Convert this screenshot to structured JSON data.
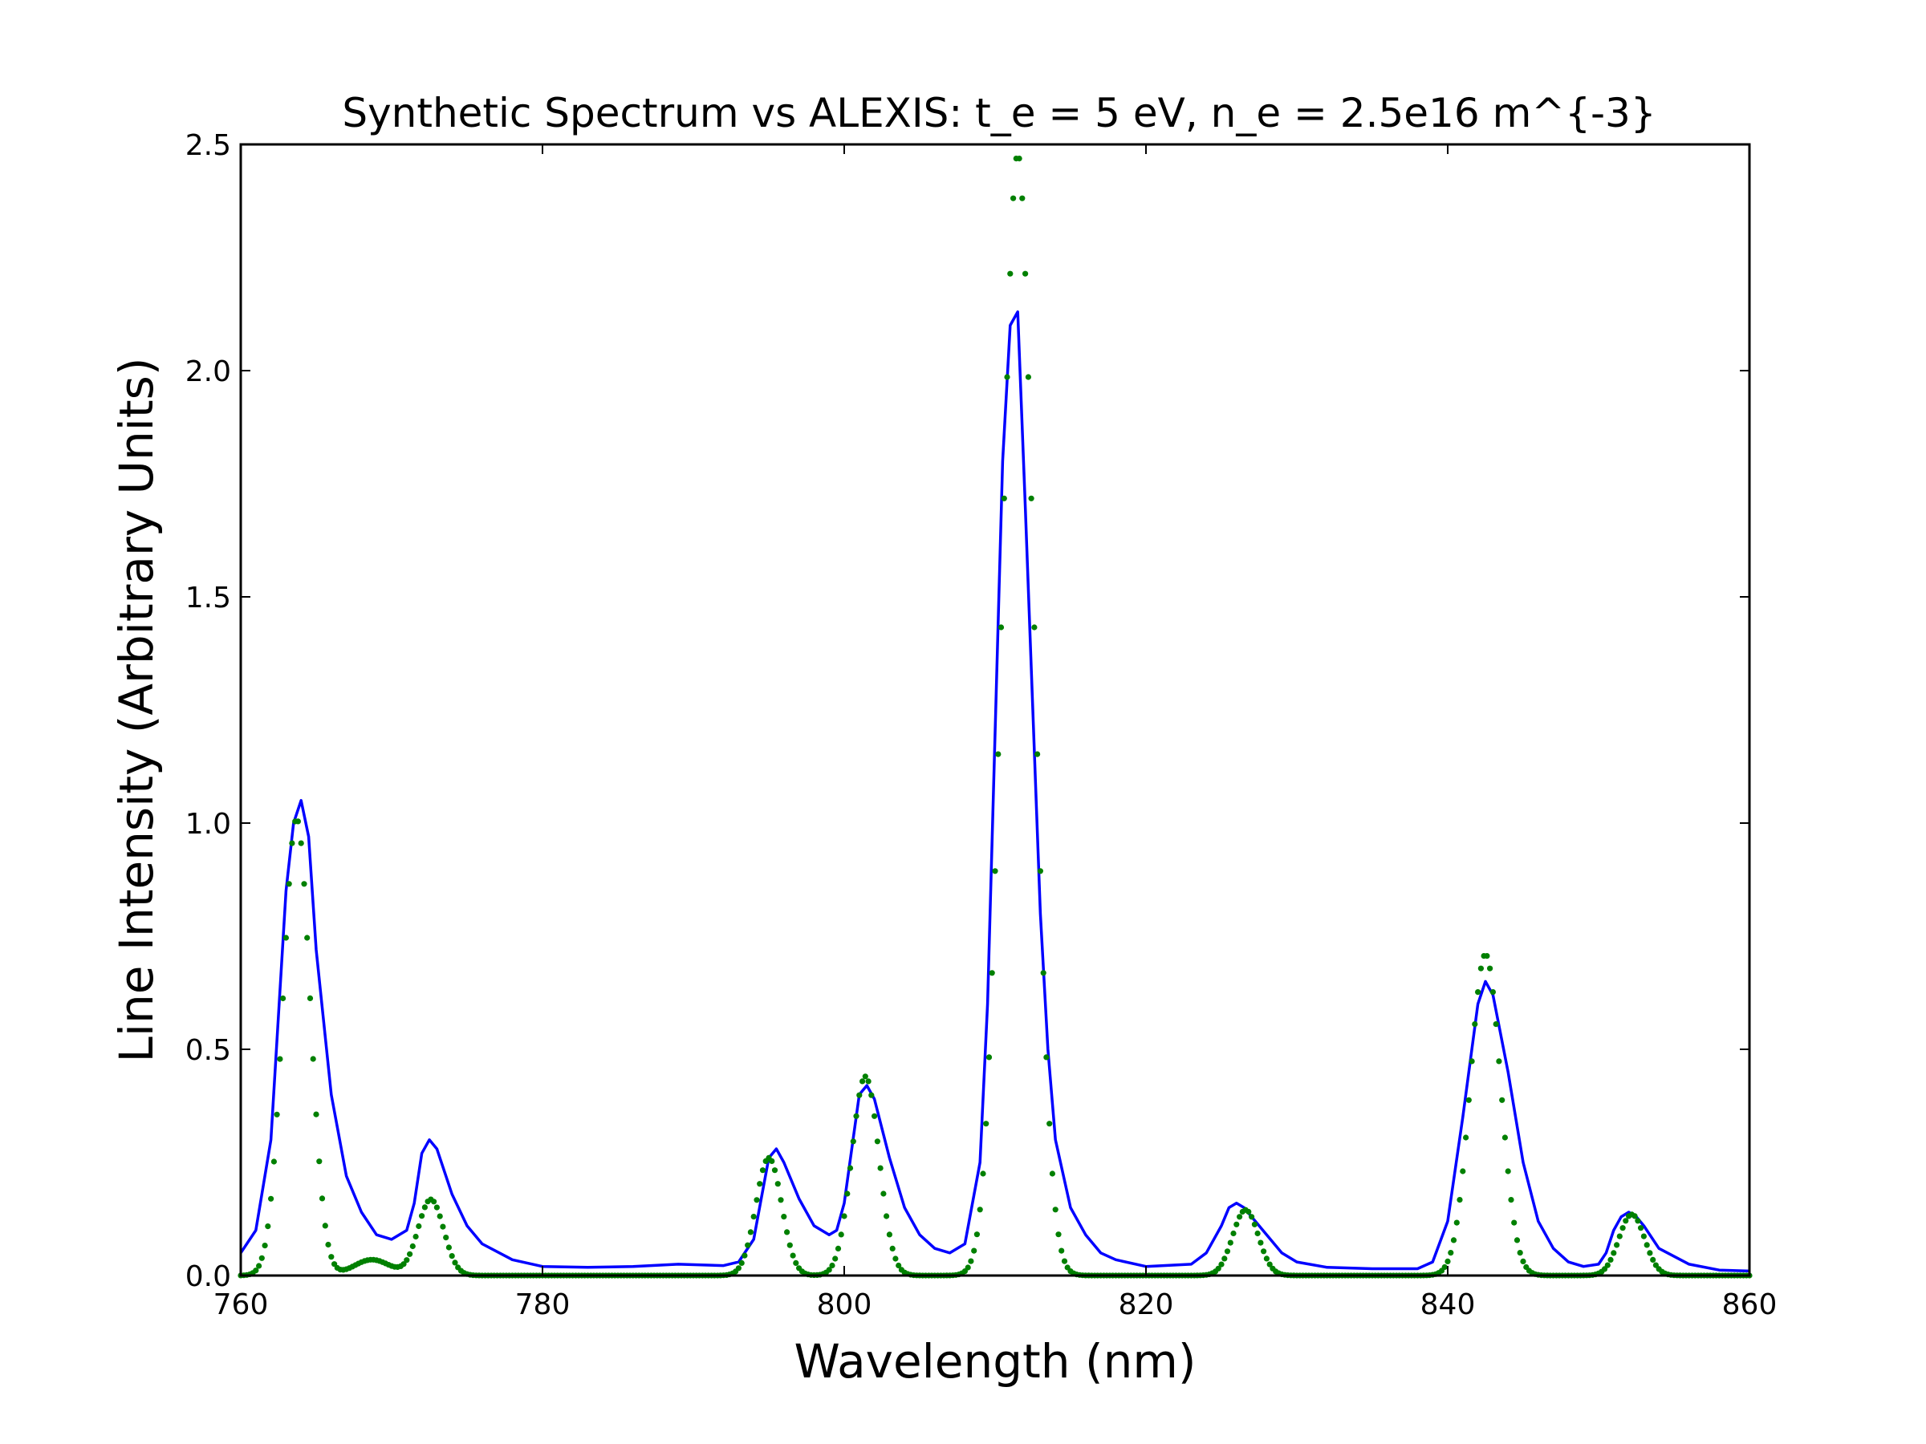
{
  "chart_data": {
    "type": "line",
    "title": "Synthetic Spectrum vs ALEXIS: t_e = 5 eV, n_e = 2.5e16 m^{-3}",
    "xlabel": "Wavelength (nm)",
    "ylabel": "Line Intensity (Arbitrary Units)",
    "xlim": [
      760,
      860
    ],
    "ylim": [
      0,
      2.5
    ],
    "xticks": [
      "760",
      "780",
      "800",
      "820",
      "840",
      "860"
    ],
    "yticks": [
      "0.0",
      "0.5",
      "1.0",
      "1.5",
      "2.0",
      "2.5"
    ],
    "grid": false,
    "legend": "none",
    "series": [
      {
        "style": "line",
        "color": "#0000ff",
        "x": [
          760,
          761,
          762,
          763,
          763.5,
          764,
          764.5,
          765,
          766,
          767,
          768,
          769,
          770,
          771,
          771.5,
          772,
          772.5,
          773,
          774,
          775,
          776,
          778,
          780,
          783,
          786,
          789,
          792,
          793,
          794,
          794.5,
          795,
          795.5,
          796,
          797,
          798,
          799,
          799.5,
          800,
          800.5,
          801,
          801.5,
          802,
          803,
          804,
          805,
          806,
          807,
          808,
          809,
          809.5,
          810,
          810.5,
          811,
          811.5,
          812,
          812.5,
          813,
          813.5,
          814,
          815,
          816,
          817,
          818,
          820,
          823,
          824,
          825,
          825.5,
          826,
          826.5,
          827,
          828,
          829,
          830,
          832,
          835,
          838,
          839,
          840,
          841,
          842,
          842.5,
          843,
          844,
          845,
          846,
          847,
          848,
          849,
          850,
          850.5,
          851,
          851.5,
          852,
          852.5,
          853,
          854,
          856,
          858,
          860
        ],
        "y": [
          0.05,
          0.1,
          0.3,
          0.85,
          1.0,
          1.05,
          0.97,
          0.72,
          0.4,
          0.22,
          0.14,
          0.09,
          0.08,
          0.1,
          0.16,
          0.27,
          0.3,
          0.28,
          0.18,
          0.11,
          0.07,
          0.035,
          0.02,
          0.018,
          0.02,
          0.025,
          0.022,
          0.03,
          0.08,
          0.17,
          0.26,
          0.28,
          0.25,
          0.17,
          0.11,
          0.09,
          0.1,
          0.16,
          0.28,
          0.4,
          0.42,
          0.39,
          0.26,
          0.15,
          0.09,
          0.06,
          0.05,
          0.07,
          0.25,
          0.6,
          1.2,
          1.8,
          2.1,
          2.13,
          1.7,
          1.25,
          0.8,
          0.5,
          0.3,
          0.15,
          0.09,
          0.05,
          0.035,
          0.02,
          0.025,
          0.05,
          0.11,
          0.15,
          0.16,
          0.15,
          0.13,
          0.09,
          0.05,
          0.03,
          0.018,
          0.015,
          0.015,
          0.03,
          0.12,
          0.35,
          0.6,
          0.65,
          0.62,
          0.45,
          0.25,
          0.12,
          0.06,
          0.03,
          0.02,
          0.025,
          0.05,
          0.1,
          0.13,
          0.14,
          0.13,
          0.11,
          0.06,
          0.025,
          0.012,
          0.01
        ]
      },
      {
        "style": "dots",
        "color": "#008000",
        "peaks": [
          {
            "center": 763.7,
            "amplitude": 1.01,
            "sigma": 0.9
          },
          {
            "center": 772.6,
            "amplitude": 0.168,
            "sigma": 0.85
          },
          {
            "center": 768.7,
            "amplitude": 0.035,
            "sigma": 1.2
          },
          {
            "center": 795.0,
            "amplitude": 0.26,
            "sigma": 0.85
          },
          {
            "center": 801.4,
            "amplitude": 0.44,
            "sigma": 0.9
          },
          {
            "center": 811.5,
            "amplitude": 2.48,
            "sigma": 1.05
          },
          {
            "center": 826.6,
            "amplitude": 0.145,
            "sigma": 0.85
          },
          {
            "center": 842.5,
            "amplitude": 0.71,
            "sigma": 1.0
          },
          {
            "center": 852.2,
            "amplitude": 0.135,
            "sigma": 0.85
          }
        ]
      }
    ]
  }
}
